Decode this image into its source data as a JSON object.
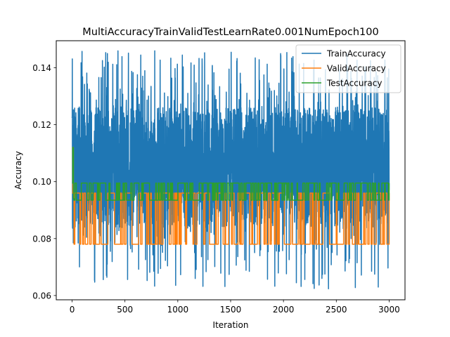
{
  "chart_data": {
    "type": "line",
    "title": "MultiAccuracyTrainValidTestLearnRate0.001NumEpoch100",
    "xlabel": "Iteration",
    "ylabel": "Accuracy",
    "xlim": [
      -150,
      3150
    ],
    "ylim": [
      0.0585,
      0.1495
    ],
    "xticks": [
      0,
      500,
      1000,
      1500,
      2000,
      2500,
      3000
    ],
    "yticks": [
      0.06,
      0.08,
      0.1,
      0.12,
      0.14
    ],
    "ytick_labels": [
      "0.06",
      "0.08",
      "0.10",
      "0.12",
      "0.14"
    ],
    "grid": false,
    "legend_position": "top-right",
    "series": [
      {
        "name": "TrainAccuracy",
        "color": "#1f77b4",
        "pattern": "noise",
        "x_range": [
          0,
          3000
        ],
        "n_points": 3000,
        "center": 0.104,
        "band": [
          0.084,
          0.126
        ],
        "min": 0.062,
        "max": 0.146,
        "seed": 7
      },
      {
        "name": "ValidAccuracy",
        "color": "#ff7f0e",
        "pattern": "step",
        "x_range": [
          0,
          3000
        ],
        "levels": [
          0.078,
          0.096
        ],
        "initial": [
          0.096,
          0.112,
          0.096
        ],
        "seed": 13
      },
      {
        "name": "TestAccuracy",
        "color": "#2ca02c",
        "pattern": "step",
        "x_range": [
          0,
          3000
        ],
        "levels": [
          0.0935,
          0.0995
        ],
        "initial": [
          0.0995,
          0.112,
          0.094
        ],
        "seed": 29
      }
    ]
  }
}
